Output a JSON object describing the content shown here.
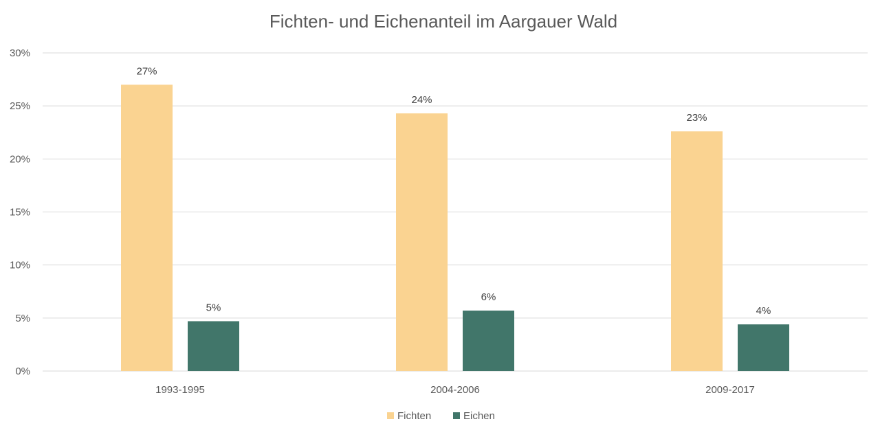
{
  "chart_data": {
    "type": "bar",
    "title": "Fichten- und Eichenanteil im Aargauer Wald",
    "categories": [
      "1993-1995",
      "2004-2006",
      "2009-2017"
    ],
    "series": [
      {
        "name": "Fichten",
        "values": [
          27,
          24.3,
          22.6
        ],
        "labels": [
          "27%",
          "24%",
          "23%"
        ],
        "color": "#fad391"
      },
      {
        "name": "Eichen",
        "values": [
          4.7,
          5.7,
          4.4
        ],
        "labels": [
          "5%",
          "6%",
          "4%"
        ],
        "color": "#41766a"
      }
    ],
    "yticks": [
      "0%",
      "5%",
      "10%",
      "15%",
      "20%",
      "25%",
      "30%"
    ],
    "ylim": [
      0,
      30
    ],
    "ystep": 5,
    "grid": true,
    "legend_position": "bottom"
  }
}
